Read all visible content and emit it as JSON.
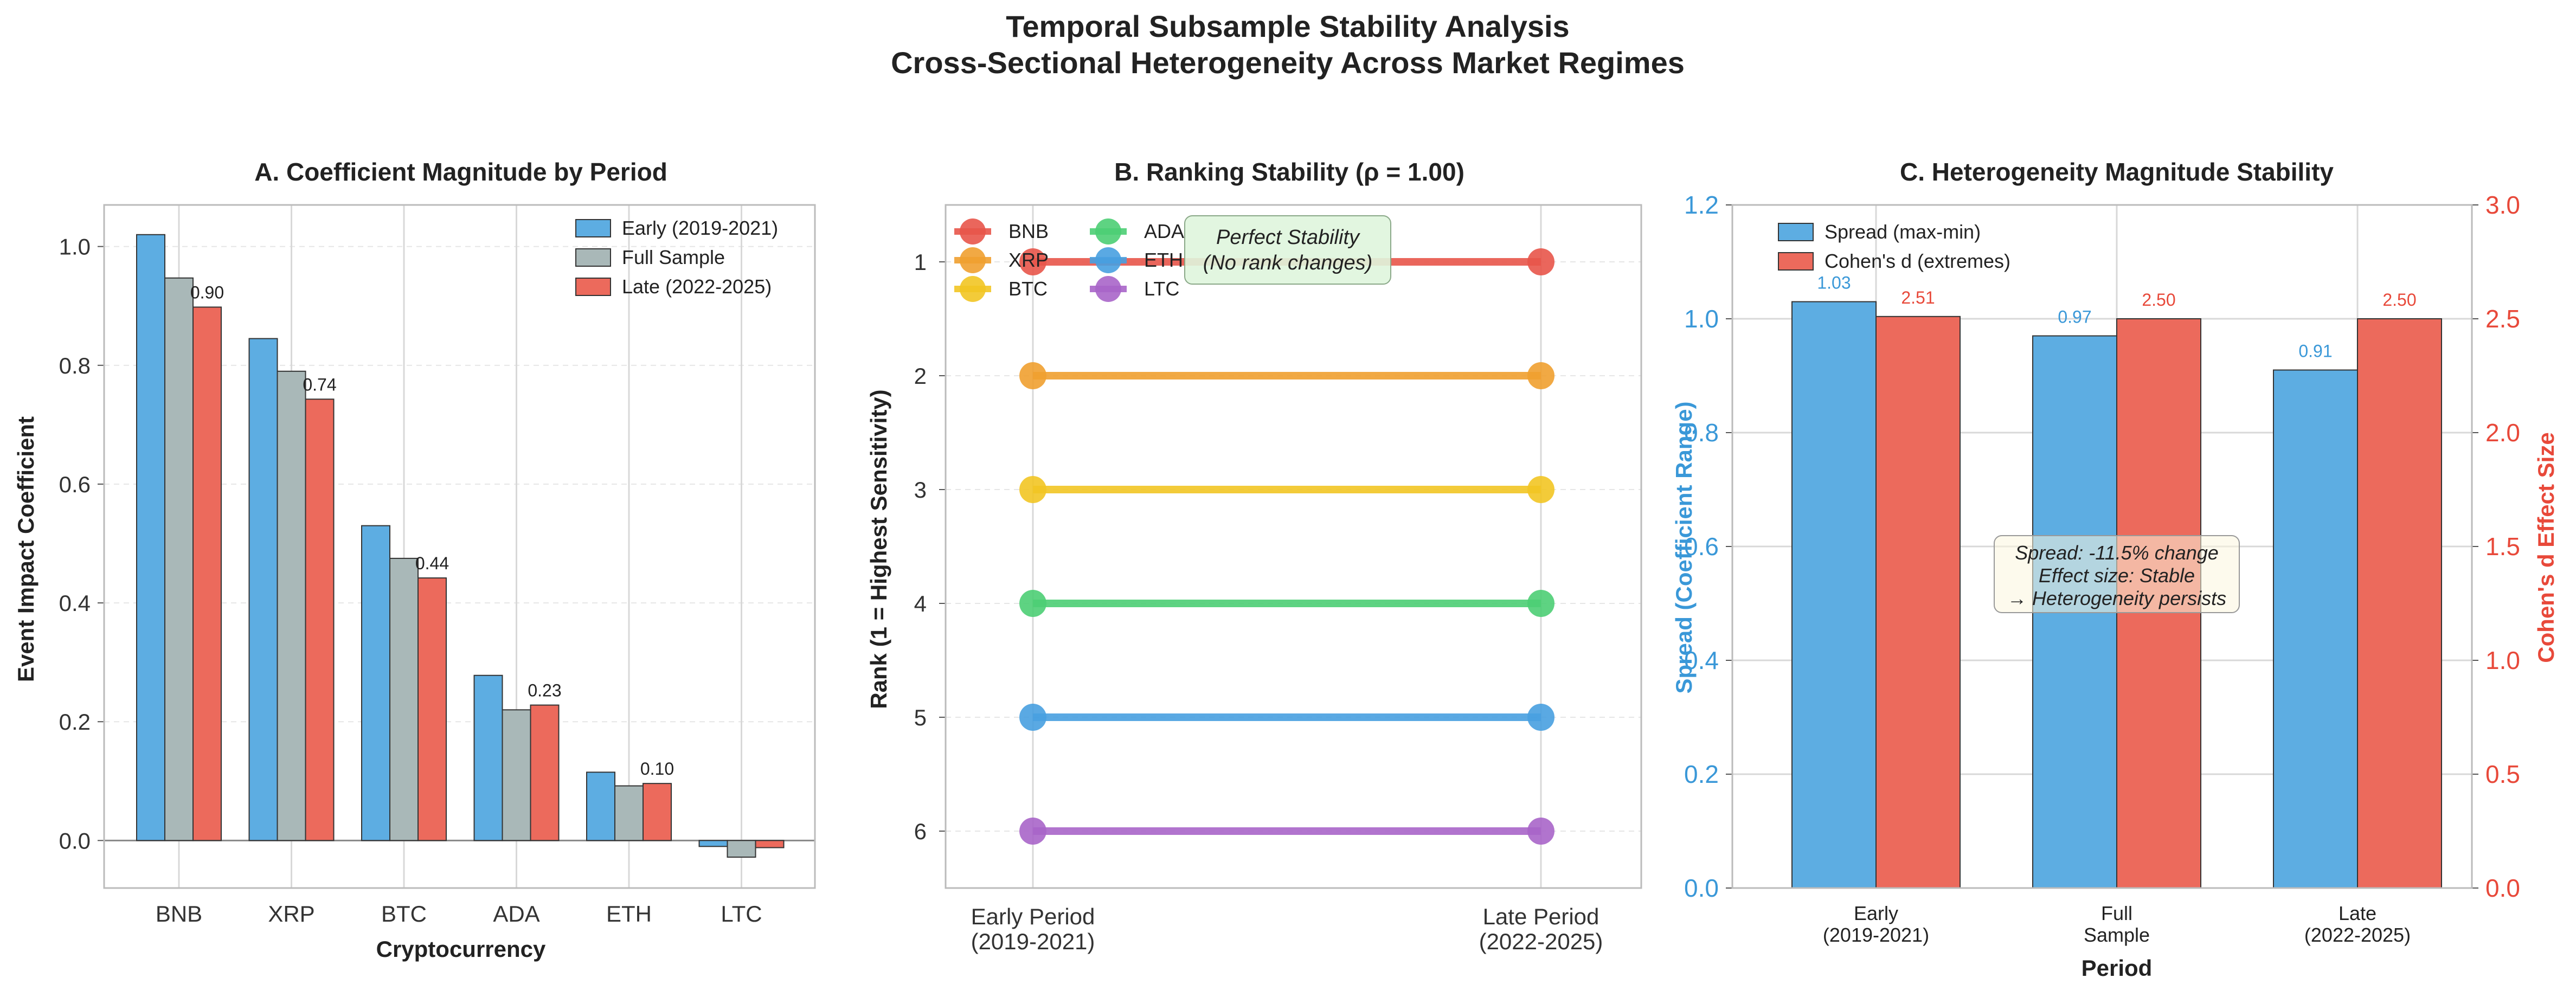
{
  "figure": {
    "title_line1": "Temporal Subsample Stability Analysis",
    "title_line2": "Cross-Sectional Heterogeneity Across Market Regimes"
  },
  "chart_data": [
    {
      "type": "bar",
      "title": "A. Coefficient Magnitude by Period",
      "xlabel": "Cryptocurrency",
      "ylabel": "Event Impact Coefficient",
      "categories": [
        "BNB",
        "XRP",
        "BTC",
        "ADA",
        "ETH",
        "LTC"
      ],
      "ylim": [
        -0.08,
        1.07
      ],
      "yticks": [
        0.0,
        0.2,
        0.4,
        0.6,
        0.8,
        1.0
      ],
      "ytick_labels": [
        "0.0",
        "0.2",
        "0.4",
        "0.6",
        "0.8",
        "1.0"
      ],
      "series": [
        {
          "name": "Early (2019-2021)",
          "color": "#5dade2",
          "values": [
            1.02,
            0.845,
            0.53,
            0.278,
            0.115,
            -0.01
          ]
        },
        {
          "name": "Full Sample",
          "color": "#a9b8b8",
          "values": [
            0.947,
            0.79,
            0.475,
            0.22,
            0.092,
            -0.028
          ]
        },
        {
          "name": "Late (2022-2025)",
          "color": "#ec6a5c",
          "values": [
            0.898,
            0.743,
            0.442,
            0.228,
            0.096,
            -0.012
          ]
        }
      ],
      "data_labels": [
        "0.90",
        "0.74",
        "0.44",
        "0.23",
        "0.10",
        ""
      ],
      "legend": "top-right",
      "grid": true
    },
    {
      "type": "line",
      "title": "B. Ranking Stability (ρ = 1.00)",
      "ylabel": "Rank (1 = Highest Sensitivity)",
      "x_categories": [
        "Early Period\n(2019-2021)",
        "Late Period\n(2022-2025)"
      ],
      "yticks": [
        1,
        2,
        3,
        4,
        5,
        6
      ],
      "ytick_labels": [
        "1",
        "2",
        "3",
        "4",
        "5",
        "6"
      ],
      "ylim": [
        6.5,
        0.5
      ],
      "y_inverted": true,
      "series": [
        {
          "name": "BNB",
          "color": "#e8554a",
          "values": [
            1,
            1
          ]
        },
        {
          "name": "XRP",
          "color": "#f0a030",
          "values": [
            2,
            2
          ]
        },
        {
          "name": "BTC",
          "color": "#f2c523",
          "values": [
            3,
            3
          ]
        },
        {
          "name": "ADA",
          "color": "#4cce74",
          "values": [
            4,
            4
          ]
        },
        {
          "name": "ETH",
          "color": "#48a0e0",
          "values": [
            5,
            5
          ]
        },
        {
          "name": "LTC",
          "color": "#a865c9",
          "values": [
            6,
            6
          ]
        }
      ],
      "annotation_line1": "Perfect Stability",
      "annotation_line2": "(No rank changes)",
      "legend": "top-left",
      "grid": true
    },
    {
      "type": "bar",
      "title": "C. Heterogeneity Magnitude Stability",
      "xlabel": "Period",
      "ylabel_left": "Spread (Coefficient Range)",
      "ylabel_right": "Cohen's d Effect Size",
      "categories": [
        "Early\n(2019-2021)",
        "Full\nSample",
        "Late\n(2022-2025)"
      ],
      "ylim_left": [
        0.0,
        1.2
      ],
      "ylim_right": [
        0.0,
        3.0
      ],
      "yticks_left": [
        "0.0",
        "0.2",
        "0.4",
        "0.6",
        "0.8",
        "1.0",
        "1.2"
      ],
      "yticks_right": [
        "0.0",
        "0.5",
        "1.0",
        "1.5",
        "2.0",
        "2.5",
        "3.0"
      ],
      "series": [
        {
          "name": "Spread (max-min)",
          "color": "#5dade2",
          "axis": "left",
          "values": [
            1.03,
            0.97,
            0.91
          ],
          "labels": [
            "1.03",
            "0.97",
            "0.91"
          ]
        },
        {
          "name": "Cohen's d (extremes)",
          "color": "#ec6a5c",
          "axis": "right",
          "values": [
            2.51,
            2.5,
            2.5
          ],
          "labels": [
            "2.51",
            "2.50",
            "2.50"
          ]
        }
      ],
      "annotation_lines": [
        "Spread: -11.5% change",
        "Effect size: Stable",
        "→ Heterogeneity persists"
      ],
      "left_axis_color": "#3a98d8",
      "right_axis_color": "#e8493a",
      "legend": "top-left",
      "grid": true
    }
  ]
}
